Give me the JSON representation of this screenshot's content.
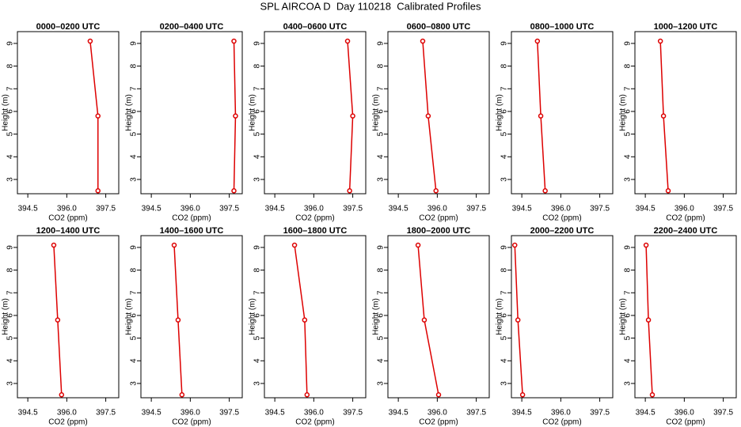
{
  "page_title": "SPL AIRCOA D  Day 110218  Calibrated Profiles",
  "chart_data": [
    {
      "type": "line",
      "title": "0000–0200 UTC",
      "xlabel": "CO2 (ppm)",
      "ylabel": "Height (m)",
      "color": "#dd0000",
      "x": [
        396.9,
        397.2,
        397.2
      ],
      "y": [
        9.1,
        5.8,
        2.5
      ],
      "xlim": [
        394.1,
        398.0
      ],
      "ylim": [
        2.37,
        9.52
      ],
      "xticks": [
        394.5,
        {
          "value": 396,
          "label": "396.0"
        },
        397.5
      ],
      "yticks": [
        3,
        4,
        5,
        6,
        7,
        8,
        9
      ]
    },
    {
      "type": "line",
      "title": "0200–0400 UTC",
      "xlabel": "CO2 (ppm)",
      "ylabel": "Height (m)",
      "color": "#dd0000",
      "x": [
        397.68,
        397.74,
        397.68
      ],
      "y": [
        9.1,
        5.8,
        2.5
      ],
      "xlim": [
        394.1,
        398.0
      ],
      "ylim": [
        2.37,
        9.52
      ],
      "xticks": [
        394.5,
        {
          "value": 396,
          "label": "396.0"
        },
        397.5
      ],
      "yticks": [
        3,
        4,
        5,
        6,
        7,
        8,
        9
      ]
    },
    {
      "type": "line",
      "title": "0400–0600 UTC",
      "xlabel": "CO2 (ppm)",
      "ylabel": "Height (m)",
      "color": "#dd0000",
      "x": [
        397.3,
        397.5,
        397.38
      ],
      "y": [
        9.1,
        5.8,
        2.5
      ],
      "xlim": [
        394.1,
        398.0
      ],
      "ylim": [
        2.37,
        9.52
      ],
      "xticks": [
        394.5,
        {
          "value": 396,
          "label": "396.0"
        },
        397.5
      ],
      "yticks": [
        3,
        4,
        5,
        6,
        7,
        8,
        9
      ]
    },
    {
      "type": "line",
      "title": "0600–0800 UTC",
      "xlabel": "CO2 (ppm)",
      "ylabel": "Height (m)",
      "color": "#dd0000",
      "x": [
        395.44,
        395.65,
        395.95
      ],
      "y": [
        9.1,
        5.8,
        2.5
      ],
      "xlim": [
        394.1,
        398.0
      ],
      "ylim": [
        2.37,
        9.52
      ],
      "xticks": [
        394.5,
        {
          "value": 396,
          "label": "396.0"
        },
        397.5
      ],
      "yticks": [
        3,
        4,
        5,
        6,
        7,
        8,
        9
      ]
    },
    {
      "type": "line",
      "title": "0800–1000 UTC",
      "xlabel": "CO2 (ppm)",
      "ylabel": "Height (m)",
      "color": "#dd0000",
      "x": [
        395.1,
        395.23,
        395.4
      ],
      "y": [
        9.1,
        5.8,
        2.5
      ],
      "xlim": [
        394.1,
        398.0
      ],
      "ylim": [
        2.37,
        9.52
      ],
      "xticks": [
        394.5,
        {
          "value": 396,
          "label": "396.0"
        },
        397.5
      ],
      "yticks": [
        3,
        4,
        5,
        6,
        7,
        8,
        9
      ]
    },
    {
      "type": "line",
      "title": "1000–1200 UTC",
      "xlabel": "CO2 (ppm)",
      "ylabel": "Height (m)",
      "color": "#dd0000",
      "x": [
        395.08,
        395.2,
        395.38
      ],
      "y": [
        9.1,
        5.8,
        2.5
      ],
      "xlim": [
        394.1,
        398.0
      ],
      "ylim": [
        2.37,
        9.52
      ],
      "xticks": [
        394.5,
        {
          "value": 396,
          "label": "396.0"
        },
        397.5
      ],
      "yticks": [
        3,
        4,
        5,
        6,
        7,
        8,
        9
      ]
    },
    {
      "type": "line",
      "title": "1200–1400 UTC",
      "xlabel": "CO2 (ppm)",
      "ylabel": "Height (m)",
      "color": "#dd0000",
      "x": [
        395.5,
        395.65,
        395.8
      ],
      "y": [
        9.1,
        5.8,
        2.5
      ],
      "xlim": [
        394.1,
        398.0
      ],
      "ylim": [
        2.37,
        9.52
      ],
      "xticks": [
        394.5,
        {
          "value": 396,
          "label": "396.0"
        },
        397.5
      ],
      "yticks": [
        3,
        4,
        5,
        6,
        7,
        8,
        9
      ]
    },
    {
      "type": "line",
      "title": "1400–1600 UTC",
      "xlabel": "CO2 (ppm)",
      "ylabel": "Height (m)",
      "color": "#dd0000",
      "x": [
        395.38,
        395.53,
        395.68
      ],
      "y": [
        9.1,
        5.8,
        2.5
      ],
      "xlim": [
        394.1,
        398.0
      ],
      "ylim": [
        2.37,
        9.52
      ],
      "xticks": [
        394.5,
        {
          "value": 396,
          "label": "396.0"
        },
        397.5
      ],
      "yticks": [
        3,
        4,
        5,
        6,
        7,
        8,
        9
      ]
    },
    {
      "type": "line",
      "title": "1600–1800 UTC",
      "xlabel": "CO2 (ppm)",
      "ylabel": "Height (m)",
      "color": "#dd0000",
      "x": [
        395.26,
        395.65,
        395.74
      ],
      "y": [
        9.1,
        5.8,
        2.5
      ],
      "xlim": [
        394.1,
        398.0
      ],
      "ylim": [
        2.37,
        9.52
      ],
      "xticks": [
        394.5,
        {
          "value": 396,
          "label": "396.0"
        },
        397.5
      ],
      "yticks": [
        3,
        4,
        5,
        6,
        7,
        8,
        9
      ]
    },
    {
      "type": "line",
      "title": "1800–2000 UTC",
      "xlabel": "CO2 (ppm)",
      "ylabel": "Height (m)",
      "color": "#dd0000",
      "x": [
        395.26,
        395.5,
        396.05
      ],
      "y": [
        9.1,
        5.8,
        2.5
      ],
      "xlim": [
        394.1,
        398.0
      ],
      "ylim": [
        2.37,
        9.52
      ],
      "xticks": [
        394.5,
        {
          "value": 396,
          "label": "396.0"
        },
        397.5
      ],
      "yticks": [
        3,
        4,
        5,
        6,
        7,
        8,
        9
      ]
    },
    {
      "type": "line",
      "title": "2000–2200 UTC",
      "xlabel": "CO2 (ppm)",
      "ylabel": "Height (m)",
      "color": "#dd0000",
      "x": [
        394.23,
        394.35,
        394.53
      ],
      "y": [
        9.1,
        5.8,
        2.5
      ],
      "xlim": [
        394.1,
        398.0
      ],
      "ylim": [
        2.37,
        9.52
      ],
      "xticks": [
        394.5,
        {
          "value": 396,
          "label": "396.0"
        },
        397.5
      ],
      "yticks": [
        3,
        4,
        5,
        6,
        7,
        8,
        9
      ]
    },
    {
      "type": "line",
      "title": "2200–2400 UTC",
      "xlabel": "CO2 (ppm)",
      "ylabel": "Height (m)",
      "color": "#dd0000",
      "x": [
        394.53,
        394.62,
        394.77
      ],
      "y": [
        9.1,
        5.8,
        2.5
      ],
      "xlim": [
        394.1,
        398.0
      ],
      "ylim": [
        2.37,
        9.52
      ],
      "xticks": [
        394.5,
        {
          "value": 396,
          "label": "396.0"
        },
        397.5
      ],
      "yticks": [
        3,
        4,
        5,
        6,
        7,
        8,
        9
      ]
    }
  ]
}
